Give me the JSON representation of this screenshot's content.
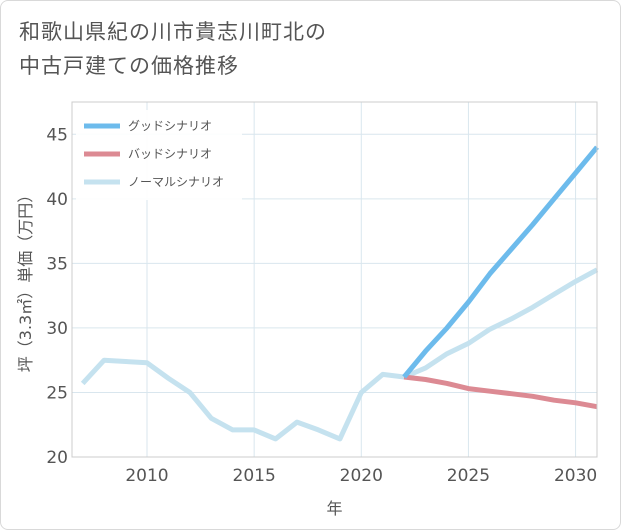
{
  "header": {
    "title_line1": "和歌山県紀の川市貴志川町北の",
    "title_line2": "中古戸建ての価格推移"
  },
  "colors": {
    "good": "#6dbbec",
    "bad": "#dc8a93",
    "normal": "#c5e2ef",
    "grid": "#d9e6ee",
    "plot_border": "#cccccc"
  },
  "chart_data": {
    "type": "line",
    "xlabel": "年",
    "ylabel": "坪（3.3㎡）単価（万円）",
    "xlim": [
      2006.5,
      2031
    ],
    "ylim": [
      20,
      47.5
    ],
    "xticks": [
      2010,
      2015,
      2020,
      2025,
      2030
    ],
    "yticks": [
      20,
      25,
      30,
      35,
      40,
      45
    ],
    "grid": true,
    "legend_position": "top-left",
    "series": [
      {
        "name": "グッドシナリオ",
        "key": "good",
        "points": [
          [
            2022,
            26.2
          ],
          [
            2023,
            28.2
          ],
          [
            2024,
            30.0
          ],
          [
            2025,
            32.0
          ],
          [
            2026,
            34.2
          ],
          [
            2027,
            36.1
          ],
          [
            2028,
            38.0
          ],
          [
            2029,
            40.0
          ],
          [
            2030,
            42.0
          ],
          [
            2031,
            44.0
          ]
        ]
      },
      {
        "name": "バッドシナリオ",
        "key": "bad",
        "points": [
          [
            2022,
            26.2
          ],
          [
            2023,
            26.0
          ],
          [
            2024,
            25.7
          ],
          [
            2025,
            25.3
          ],
          [
            2026,
            25.1
          ],
          [
            2027,
            24.9
          ],
          [
            2028,
            24.7
          ],
          [
            2029,
            24.4
          ],
          [
            2030,
            24.2
          ],
          [
            2031,
            23.9
          ]
        ]
      },
      {
        "name": "ノーマルシナリオ",
        "key": "normal",
        "points": [
          [
            2007,
            25.7
          ],
          [
            2008,
            27.5
          ],
          [
            2009,
            27.4
          ],
          [
            2010,
            27.3
          ],
          [
            2011,
            26.1
          ],
          [
            2012,
            25.0
          ],
          [
            2013,
            23.0
          ],
          [
            2014,
            22.1
          ],
          [
            2015,
            22.1
          ],
          [
            2016,
            21.4
          ],
          [
            2017,
            22.7
          ],
          [
            2018,
            22.1
          ],
          [
            2019,
            21.4
          ],
          [
            2020,
            25.0
          ],
          [
            2021,
            26.4
          ],
          [
            2022,
            26.2
          ],
          [
            2023,
            26.9
          ],
          [
            2024,
            28.0
          ],
          [
            2025,
            28.8
          ],
          [
            2026,
            29.9
          ],
          [
            2027,
            30.7
          ],
          [
            2028,
            31.6
          ],
          [
            2029,
            32.6
          ],
          [
            2030,
            33.6
          ],
          [
            2031,
            34.5
          ]
        ]
      }
    ]
  }
}
